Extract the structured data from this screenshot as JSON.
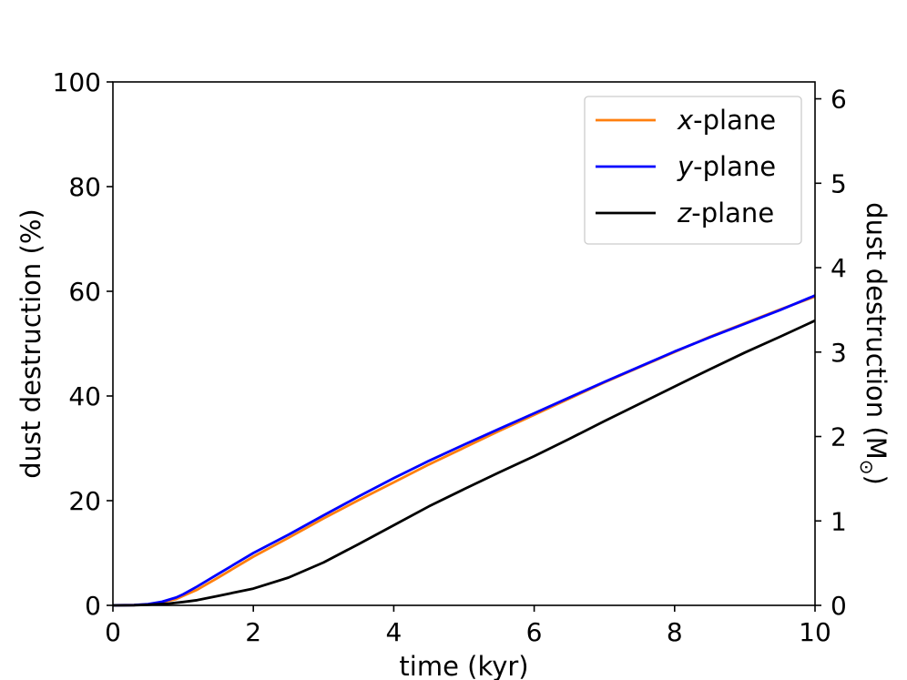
{
  "chart_data": {
    "type": "line",
    "xlabel": "time (kyr)",
    "ylabel": "dust destruction (%)",
    "y2label": "dust destruction (M",
    "y2label_sub": "⊙",
    "y2label_end": ")",
    "xlim": [
      0,
      10
    ],
    "ylim": [
      0,
      100
    ],
    "y2lim": [
      0,
      6.2
    ],
    "xticks": [
      0,
      2,
      4,
      6,
      8,
      10
    ],
    "yticks": [
      0,
      20,
      40,
      60,
      80,
      100
    ],
    "y2ticks": [
      0,
      1,
      2,
      3,
      4,
      5,
      6
    ],
    "grid": false,
    "legend_position": "top-right",
    "series": [
      {
        "name": "x-plane",
        "name_italic": "x",
        "name_rest": "-plane",
        "color": "#ff7f0e",
        "x": [
          0,
          0.3,
          0.5,
          0.7,
          0.9,
          1.0,
          1.2,
          1.5,
          2.0,
          2.5,
          3.0,
          3.5,
          4.0,
          4.5,
          5.0,
          5.5,
          6.0,
          6.5,
          7.0,
          7.5,
          8.0,
          8.5,
          9.0,
          9.5,
          10.0
        ],
        "y": [
          0,
          0.05,
          0.2,
          0.6,
          1.2,
          1.8,
          3.0,
          5.3,
          9.3,
          12.9,
          16.6,
          20.1,
          23.5,
          26.9,
          30.1,
          33.3,
          36.4,
          39.5,
          42.6,
          45.5,
          48.4,
          51.3,
          53.9,
          56.5,
          59.0
        ]
      },
      {
        "name": "y-plane",
        "name_italic": "y",
        "name_rest": "-plane",
        "color": "#0000ff",
        "x": [
          0,
          0.3,
          0.5,
          0.7,
          0.9,
          1.0,
          1.2,
          1.5,
          2.0,
          2.5,
          3.0,
          3.5,
          4.0,
          4.5,
          5.0,
          5.5,
          6.0,
          6.5,
          7.0,
          7.5,
          8.0,
          8.5,
          9.0,
          9.5,
          10.0
        ],
        "y": [
          0,
          0.05,
          0.25,
          0.7,
          1.5,
          2.1,
          3.6,
          6.0,
          10.0,
          13.5,
          17.2,
          20.8,
          24.3,
          27.6,
          30.7,
          33.7,
          36.7,
          39.7,
          42.7,
          45.6,
          48.5,
          51.2,
          53.8,
          56.4,
          59.2
        ]
      },
      {
        "name": "z-plane",
        "name_italic": "z",
        "name_rest": "-plane",
        "color": "#000000",
        "x": [
          0,
          0.3,
          0.5,
          0.8,
          1.0,
          1.2,
          1.5,
          2.0,
          2.5,
          3.0,
          3.5,
          4.0,
          4.5,
          5.0,
          5.5,
          6.0,
          6.5,
          7.0,
          7.5,
          8.0,
          8.5,
          9.0,
          9.5,
          10.0
        ],
        "y": [
          0,
          0.02,
          0.1,
          0.35,
          0.65,
          1.0,
          1.8,
          3.2,
          5.3,
          8.2,
          11.7,
          15.3,
          18.9,
          22.2,
          25.4,
          28.5,
          31.8,
          35.2,
          38.5,
          41.8,
          45.1,
          48.3,
          51.3,
          54.4
        ]
      }
    ]
  }
}
